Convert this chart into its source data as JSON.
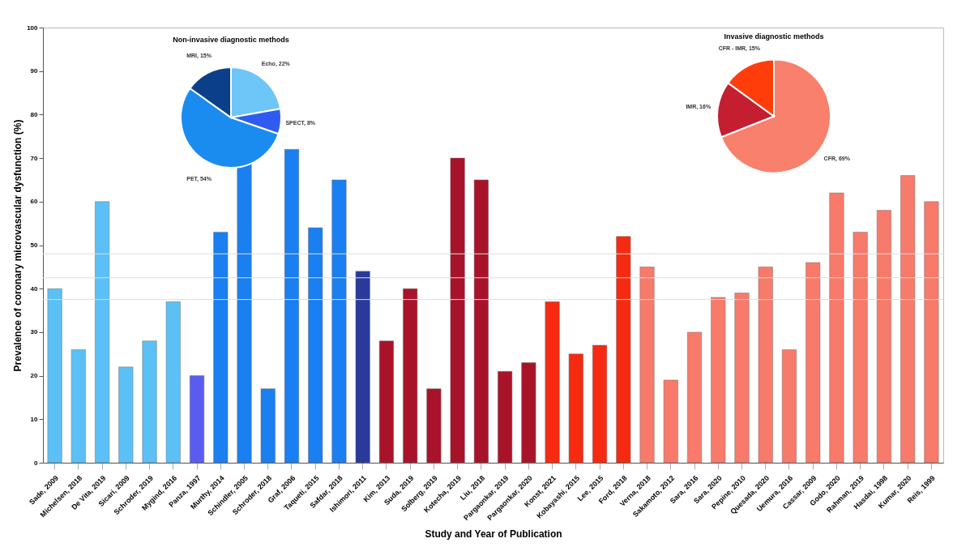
{
  "chart_data": [
    {
      "type": "bar",
      "xlabel": "Study and Year of Publication",
      "ylabel": "Prevalence of coronary microvascular dysfunction (%)",
      "categories": [
        "Sade, 2009",
        "Michelsen, 2018",
        "De Vita, 2019",
        "Sicari, 2009",
        "Schroder, 2019",
        "Mygind, 2016",
        "Panza, 1997",
        "Murthy, 2014",
        "Schindler, 2005",
        "Schroder, 2018",
        "Graf, 2006",
        "Taqueti, 2015",
        "Safdar, 2018",
        "Ishimori, 2011",
        "Kim, 2013",
        "Suda, 2019",
        "Solberg, 2019",
        "Kotecha, 2019",
        "Liu, 2018",
        "Pargaonkar, 2019",
        "Pargaonkar, 2020",
        "Konst, 2021",
        "Kobayashi, 2015",
        "Lee, 2015",
        "Ford, 2018",
        "Verna, 2018",
        "Sakamoto, 2012",
        "Sara, 2016",
        "Sara, 2020",
        "Pepine, 2010",
        "Quesada, 2020",
        "Uemura, 2016",
        "Cassar, 2009",
        "Godo, 2020",
        "Rahman, 2019",
        "Hasdai, 1998",
        "Kumar, 2020",
        "Reis, 1999"
      ],
      "values": [
        40,
        26,
        60,
        22,
        28,
        37,
        20,
        53,
        69,
        17,
        72,
        54,
        65,
        44,
        28,
        40,
        17,
        70,
        65,
        21,
        23,
        37,
        25,
        27,
        52,
        45,
        19,
        30,
        38,
        39,
        45,
        26,
        46,
        62,
        53,
        58,
        66,
        60
      ],
      "colors": [
        "#5bc0f5",
        "#5bc0f5",
        "#5bc0f5",
        "#5bc0f5",
        "#5bc0f5",
        "#5bc0f5",
        "#5a5cf0",
        "#1a7ff0",
        "#1a7ff0",
        "#1a7ff0",
        "#1a7ff0",
        "#1a7ff0",
        "#1a7ff0",
        "#2a3a9a",
        "#a8132a",
        "#a8132a",
        "#a8132a",
        "#a8132a",
        "#a8132a",
        "#a8132a",
        "#a8132a",
        "#f52a10",
        "#f52a10",
        "#f52a10",
        "#f52a10",
        "#f87a6a",
        "#f87a6a",
        "#f87a6a",
        "#f87a6a",
        "#f87a6a",
        "#f87a6a",
        "#f87a6a",
        "#f87a6a",
        "#f87a6a",
        "#f87a6a",
        "#f87a6a",
        "#f87a6a",
        "#f87a6a"
      ],
      "ylim": [
        0,
        100
      ],
      "yticks": [
        0,
        10,
        20,
        30,
        40,
        50,
        60,
        70,
        80,
        90,
        100
      ],
      "ref_lines": [
        {
          "axis": "y",
          "value": 48,
          "color": "#dddddd"
        },
        {
          "axis": "y",
          "value": 42.5,
          "color": "#dddddd"
        },
        {
          "axis": "y",
          "value": 37.5,
          "color": "#dddddd"
        }
      ],
      "grid": false,
      "legend": false
    },
    {
      "type": "pie",
      "title": "Non-invasive diagnostic methods",
      "categories": [
        "Echo",
        "SPECT",
        "PET",
        "MRI"
      ],
      "values": [
        22,
        8,
        54,
        15
      ],
      "colors": [
        "#6ec6f8",
        "#2f5cf0",
        "#1a8cf0",
        "#0b3f8a"
      ],
      "value_labels": [
        "22%",
        "8%",
        "54%",
        "15%"
      ],
      "legend": false
    },
    {
      "type": "pie",
      "title": "Invasive diagnostic methods",
      "categories": [
        "CFR",
        "IMR",
        "CFR - IMR"
      ],
      "values": [
        69,
        16,
        15
      ],
      "colors": [
        "#f8806c",
        "#c41e30",
        "#ff3d0a"
      ],
      "value_labels": [
        "69%",
        "16%",
        "15%"
      ],
      "legend": false
    }
  ]
}
